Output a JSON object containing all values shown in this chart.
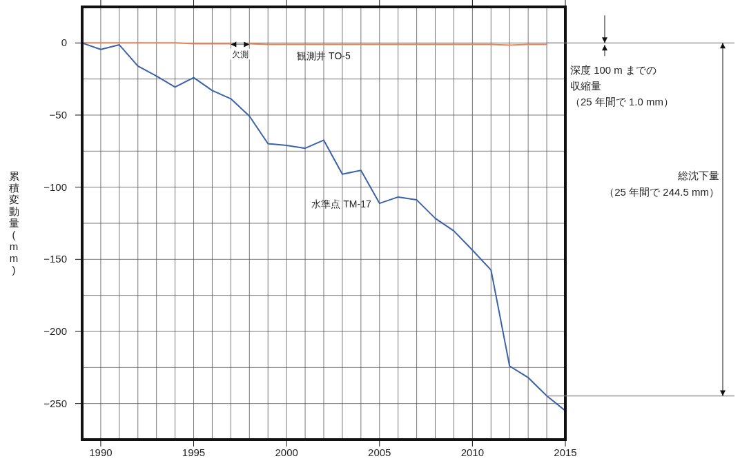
{
  "chart_data": {
    "type": "line",
    "ylabel": "累積変動量 (mm)",
    "xlim": [
      1989,
      2015
    ],
    "ylim": [
      -275,
      25
    ],
    "xticks": [
      {
        "value": 1990,
        "label": "1990"
      },
      {
        "value": 1991,
        "label": null
      },
      {
        "value": 1992,
        "label": null
      },
      {
        "value": 1993,
        "label": null
      },
      {
        "value": 1994,
        "label": null
      },
      {
        "value": 1995,
        "label": "1995"
      },
      {
        "value": 1996,
        "label": null
      },
      {
        "value": 1997,
        "label": null
      },
      {
        "value": 1998,
        "label": null
      },
      {
        "value": 1999,
        "label": null
      },
      {
        "value": 2000,
        "label": "2000"
      },
      {
        "value": 2001,
        "label": null
      },
      {
        "value": 2002,
        "label": null
      },
      {
        "value": 2003,
        "label": null
      },
      {
        "value": 2004,
        "label": null
      },
      {
        "value": 2005,
        "label": "2005"
      },
      {
        "value": 2006,
        "label": null
      },
      {
        "value": 2007,
        "label": null
      },
      {
        "value": 2008,
        "label": null
      },
      {
        "value": 2009,
        "label": null
      },
      {
        "value": 2010,
        "label": "2010"
      },
      {
        "value": 2011,
        "label": null
      },
      {
        "value": 2012,
        "label": null
      },
      {
        "value": 2013,
        "label": null
      },
      {
        "value": 2014,
        "label": null
      },
      {
        "value": 2015,
        "label": "2015"
      }
    ],
    "yticks": [
      {
        "value": 0,
        "label": "0"
      },
      {
        "value": -25,
        "label": null
      },
      {
        "value": -50,
        "label": "−50"
      },
      {
        "value": -75,
        "label": null
      },
      {
        "value": -100,
        "label": "−100"
      },
      {
        "value": -125,
        "label": null
      },
      {
        "value": -150,
        "label": "−150"
      },
      {
        "value": -175,
        "label": null
      },
      {
        "value": -200,
        "label": "−200"
      },
      {
        "value": -225,
        "label": null
      },
      {
        "value": -250,
        "label": "−250"
      }
    ],
    "grid": true,
    "series": [
      {
        "name": "観測井 TO-5",
        "color": "#e8845a",
        "x": [
          1989,
          1990,
          1991,
          1992,
          1993,
          1994,
          1995,
          1996,
          1997,
          1997.5,
          1998,
          1999,
          2000,
          2001,
          2002,
          2003,
          2004,
          2005,
          2006,
          2007,
          2008,
          2009,
          2010,
          2011,
          2012,
          2013,
          2014
        ],
        "values": [
          0,
          0,
          0,
          0,
          0,
          0,
          -0.5,
          -0.5,
          -0.5,
          null,
          -0.5,
          -1,
          -1,
          -1,
          -1,
          -1,
          -1,
          -1,
          -1,
          -1,
          -1,
          -1,
          -1,
          -1,
          -1.5,
          -1,
          -1
        ]
      },
      {
        "name": "水準点 TM-17",
        "color": "#3a62a8",
        "x": [
          1989,
          1990,
          1991,
          1992,
          1993,
          1994,
          1995,
          1996,
          1997,
          1998,
          1999,
          2000,
          2001,
          2002,
          2003,
          2004,
          2005,
          2006,
          2007,
          2008,
          2009,
          2010,
          2011,
          2012,
          2013,
          2014,
          2015
        ],
        "values": [
          0,
          -4.5,
          -1.3,
          -16,
          -23,
          -30.6,
          -24,
          -33,
          -38.7,
          -50.7,
          -69.8,
          -71,
          -73,
          -67.4,
          -91,
          -88.3,
          -111.2,
          -106.8,
          -108.8,
          -121.6,
          -130.3,
          -143.6,
          -157.4,
          -224,
          -232,
          -244.7,
          -255
        ]
      }
    ],
    "annotations": [
      "欠測",
      "深度 100 m までの",
      "収縮量",
      "（25 年間で 1.0 mm）",
      "総沈下量",
      "（25 年間で 244.5 mm）"
    ]
  }
}
